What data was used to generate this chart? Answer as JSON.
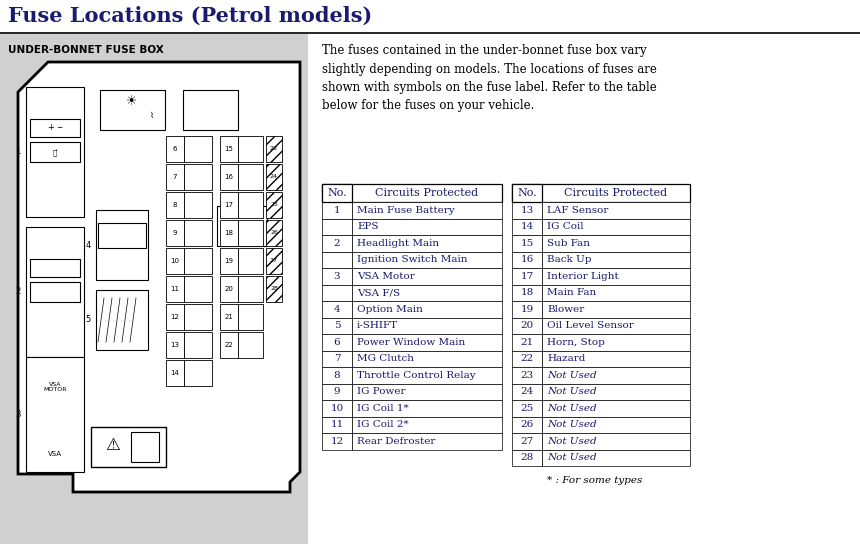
{
  "title": "Fuse Locations (Petrol models)",
  "title_color": "#1a1a6e",
  "background_color": "#ffffff",
  "left_panel_bg": "#d0d0d0",
  "section_label": "UNDER-BONNET FUSE BOX",
  "description": "The fuses contained in the under-bonnet fuse box vary\nslightly depending on models. The locations of fuses are\nshown with symbols on the fuse label. Refer to the table\nbelow for the fuses on your vehicle.",
  "footnote": "* : For some types",
  "table_left": [
    [
      "1",
      "Main Fuse Battery"
    ],
    [
      "",
      "EPS"
    ],
    [
      "2",
      "Headlight Main"
    ],
    [
      "",
      "Ignition Switch Main"
    ],
    [
      "3",
      "VSA Motor"
    ],
    [
      "",
      "VSA F/S"
    ],
    [
      "4",
      "Option Main"
    ],
    [
      "5",
      "i-SHIFT"
    ],
    [
      "6",
      "Power Window Main"
    ],
    [
      "7",
      "MG Clutch"
    ],
    [
      "8",
      "Throttle Control Relay"
    ],
    [
      "9",
      "IG Power"
    ],
    [
      "10",
      "IG Coil 1*"
    ],
    [
      "11",
      "IG Coil 2*"
    ],
    [
      "12",
      "Rear Defroster"
    ]
  ],
  "table_right": [
    [
      "13",
      "LAF Sensor"
    ],
    [
      "14",
      "IG Coil"
    ],
    [
      "15",
      "Sub Fan"
    ],
    [
      "16",
      "Back Up"
    ],
    [
      "17",
      "Interior Light"
    ],
    [
      "18",
      "Main Fan"
    ],
    [
      "19",
      "Blower"
    ],
    [
      "20",
      "Oil Level Sensor"
    ],
    [
      "21",
      "Horn, Stop"
    ],
    [
      "22",
      "Hazard"
    ],
    [
      "23",
      "Not Used"
    ],
    [
      "24",
      "Not Used"
    ],
    [
      "25",
      "Not Used"
    ],
    [
      "26",
      "Not Used"
    ],
    [
      "27",
      "Not Used"
    ],
    [
      "28",
      "Not Used"
    ]
  ],
  "table_text_color": "#1a1a6e",
  "not_used_color": "#1a1a6e"
}
